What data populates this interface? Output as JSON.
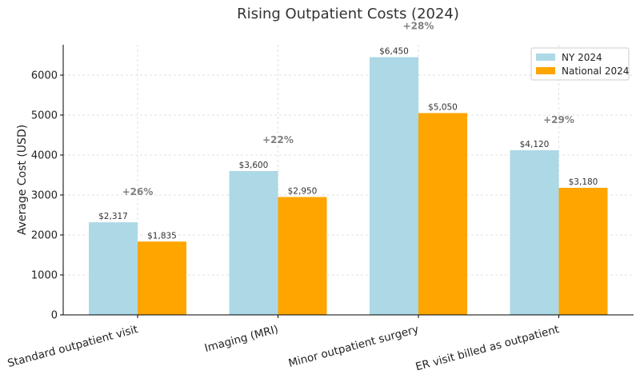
{
  "chart_data": {
    "type": "bar",
    "title": "Rising Outpatient Costs (2024)",
    "xlabel": "",
    "ylabel": "Average Cost (USD)",
    "ylim": [
      0,
      6800
    ],
    "yticks": [
      0,
      1000,
      2000,
      3000,
      4000,
      5000,
      6000
    ],
    "grid": true,
    "legend_position": "top-right",
    "categories": [
      "Standard outpatient visit",
      "Imaging (MRI)",
      "Minor outpatient surgery",
      "ER visit billed as outpatient"
    ],
    "series": [
      {
        "name": "NY 2024",
        "color": "#add8e6",
        "values": [
          2317,
          3600,
          6450,
          4120
        ],
        "labels": [
          "$2,317",
          "$3,600",
          "$6,450",
          "$4,120"
        ]
      },
      {
        "name": "National 2024",
        "color": "#ffa500",
        "values": [
          1835,
          2950,
          5050,
          3180
        ],
        "labels": [
          "$1,835",
          "$2,950",
          "$5,050",
          "$3,180"
        ]
      }
    ],
    "annotations": [
      "+26%",
      "+22%",
      "+28%",
      "+29%"
    ],
    "annotation_values": [
      3000,
      4300,
      7150,
      4800
    ]
  }
}
